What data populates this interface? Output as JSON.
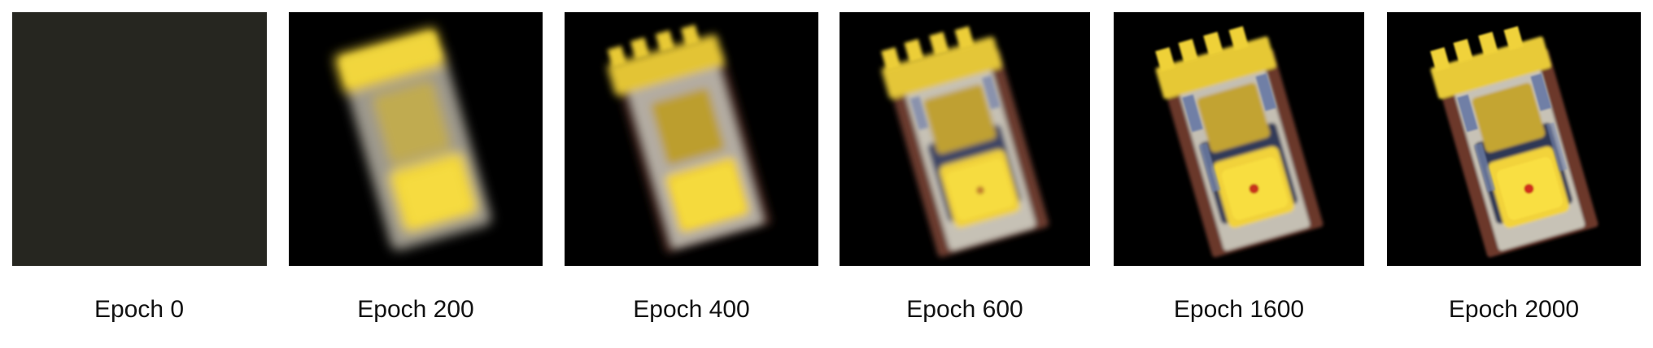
{
  "figure": {
    "captions": [
      "Epoch 0",
      "Epoch 200",
      "Epoch 400",
      "Epoch 600",
      "Epoch 1600",
      "Epoch 2000"
    ]
  },
  "colors": {
    "background": "#ffffff",
    "empty_render": "#25241f",
    "render_background": "#000000",
    "bulldozer_yellow": "#f1d233",
    "track_brown": "#6a3c30",
    "gray_body": "#b8b2a4",
    "blue_tint": "#6f7fa6",
    "red_light": "#c8321c"
  }
}
